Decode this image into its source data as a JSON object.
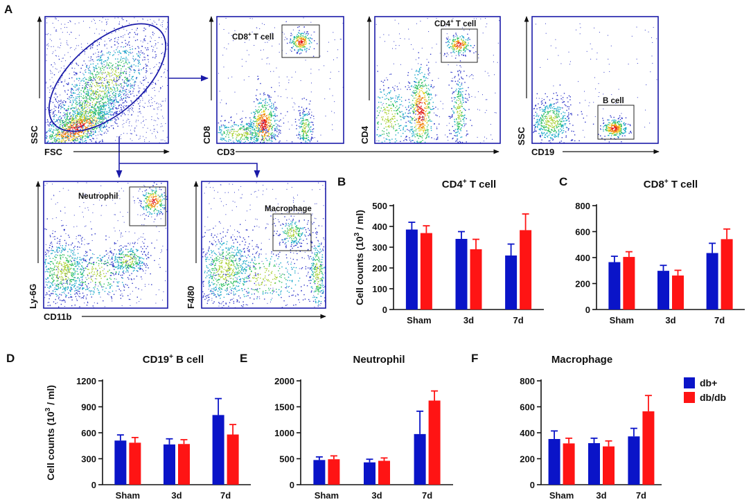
{
  "panel_labels": {
    "a": "A",
    "b": "B",
    "c": "C",
    "d": "D",
    "e": "E",
    "f": "F"
  },
  "flow_axes": {
    "fsc": "FSC",
    "ssc_1": "SSC",
    "cd8": "CD8",
    "cd3": "CD3",
    "cd4": "CD4",
    "ssc_2": "SSC",
    "cd19": "CD19",
    "ly6g": "Ly-6G",
    "cd11b": "CD11b",
    "f480": "F4/80"
  },
  "gates": {
    "cd8": {
      "label": "CD8",
      "sup": "+",
      "rest": " T cell"
    },
    "cd4": {
      "label": "CD4",
      "sup": "+",
      "rest": " T cell"
    },
    "bcell": "B cell",
    "neutrophil": "Neutrophil",
    "macrophage": "Macrophage"
  },
  "y_axis_label": {
    "prefix": "Cell counts (10",
    "sup": "3",
    "suffix": " / ml)"
  },
  "legend": [
    {
      "name": "db+",
      "color": "#0a14c8"
    },
    {
      "name": "db/db",
      "color": "#ff1414"
    }
  ],
  "colors": {
    "db_plus": "#0a14c8",
    "db_db": "#ff1414",
    "gate_blue": "#1a1aa8"
  },
  "chart_data": [
    {
      "id": "B",
      "type": "bar",
      "title": "CD4",
      "title_sup": "+",
      "title_rest": " T cell",
      "categories": [
        "Sham",
        "3d",
        "7d"
      ],
      "ylim": [
        0,
        500
      ],
      "yticks": [
        0,
        100,
        200,
        300,
        400,
        500
      ],
      "series": [
        {
          "name": "db+",
          "values": [
            385,
            340,
            260
          ],
          "errors": [
            35,
            35,
            55
          ]
        },
        {
          "name": "db/db",
          "values": [
            368,
            290,
            382
          ],
          "errors": [
            35,
            48,
            78
          ]
        }
      ]
    },
    {
      "id": "C",
      "type": "bar",
      "title": "CD8",
      "title_sup": "+",
      "title_rest": " T cell",
      "categories": [
        "Sham",
        "3d",
        "7d"
      ],
      "ylim": [
        0,
        800
      ],
      "yticks": [
        0,
        200,
        400,
        600,
        800
      ],
      "series": [
        {
          "name": "db+",
          "values": [
            365,
            298,
            435
          ],
          "errors": [
            45,
            42,
            75
          ]
        },
        {
          "name": "db/db",
          "values": [
            405,
            262,
            542
          ],
          "errors": [
            40,
            40,
            78
          ]
        }
      ]
    },
    {
      "id": "D",
      "type": "bar",
      "title": "CD19",
      "title_sup": "+",
      "title_rest": " B cell",
      "categories": [
        "Sham",
        "3d",
        "7d"
      ],
      "ylim": [
        0,
        1200
      ],
      "yticks": [
        0,
        300,
        600,
        900,
        1200
      ],
      "series": [
        {
          "name": "db+",
          "values": [
            510,
            465,
            805
          ],
          "errors": [
            65,
            65,
            190
          ]
        },
        {
          "name": "db/db",
          "values": [
            485,
            470,
            580
          ],
          "errors": [
            60,
            50,
            115
          ]
        }
      ]
    },
    {
      "id": "E",
      "type": "bar",
      "title": "Neutrophil",
      "title_sup": "",
      "title_rest": "",
      "categories": [
        "Sham",
        "3d",
        "7d"
      ],
      "ylim": [
        0,
        2000
      ],
      "yticks": [
        0,
        500,
        1000,
        1500,
        2000
      ],
      "series": [
        {
          "name": "db+",
          "values": [
            475,
            430,
            975
          ],
          "errors": [
            60,
            60,
            440
          ]
        },
        {
          "name": "db/db",
          "values": [
            490,
            460,
            1620
          ],
          "errors": [
            65,
            55,
            185
          ]
        }
      ]
    },
    {
      "id": "F",
      "type": "bar",
      "title": "Macrophage",
      "title_sup": "",
      "title_rest": "",
      "categories": [
        "Sham",
        "3d",
        "7d"
      ],
      "ylim": [
        0,
        800
      ],
      "yticks": [
        0,
        200,
        400,
        600,
        800
      ],
      "series": [
        {
          "name": "db+",
          "values": [
            352,
            320,
            372
          ],
          "errors": [
            62,
            38,
            62
          ]
        },
        {
          "name": "db/db",
          "values": [
            318,
            295,
            565
          ],
          "errors": [
            40,
            42,
            122
          ]
        }
      ]
    }
  ]
}
